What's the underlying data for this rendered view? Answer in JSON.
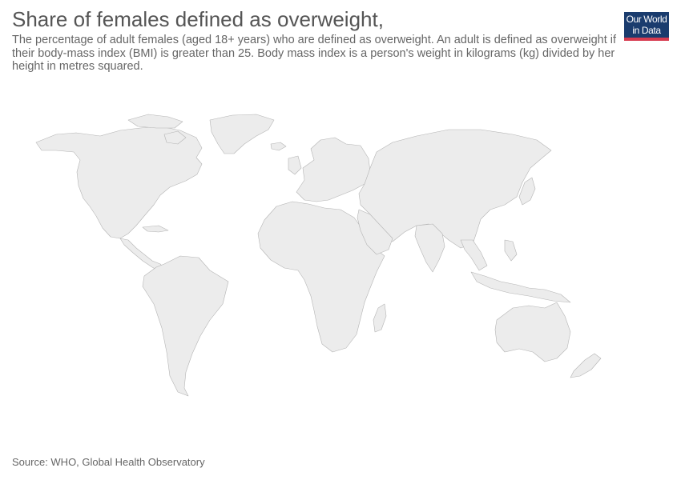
{
  "header": {
    "title": "Share of females defined as overweight,",
    "subtitle": "The percentage of adult females (aged 18+ years) who are defined as overweight. An adult is defined as overweight if their body-mass index (BMI) is greater than 25. Body mass index is a person's weight in kilograms (kg) divided by her height in metres squared."
  },
  "logo": {
    "line1": "Our World",
    "line2": "in Data",
    "background_color": "#1a3c6e",
    "accent_color": "#d73c50"
  },
  "map": {
    "fill_color": "#ececec",
    "border_color": "#b4b4b4",
    "regions": [
      "North America",
      "Greenland",
      "Central America",
      "South America",
      "Europe",
      "Africa",
      "Madagascar",
      "Asia",
      "Indonesia",
      "Australia",
      "New Zealand"
    ]
  },
  "footer": {
    "source": "Source: WHO, Global Health Observatory"
  }
}
